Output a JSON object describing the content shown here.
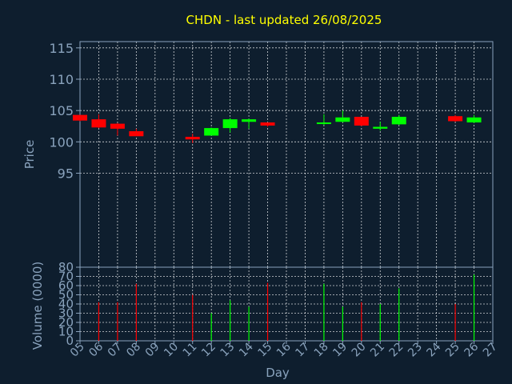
{
  "chart_data": {
    "type": "candlestick",
    "title": "CHDN - last updated 26/08/2025",
    "xlabel": "Day",
    "x_ticks": [
      "05",
      "06",
      "07",
      "08",
      "09",
      "10",
      "11",
      "12",
      "13",
      "14",
      "15",
      "16",
      "17",
      "18",
      "19",
      "20",
      "21",
      "22",
      "23",
      "24",
      "25",
      "26",
      "27"
    ],
    "xlim": [
      5,
      27
    ],
    "price_panel": {
      "ylabel": "Price",
      "ylim": [
        80,
        116
      ],
      "y_ticks": [
        95,
        100,
        105,
        110,
        115
      ],
      "candles": [
        {
          "day": 5,
          "open": 104.3,
          "high": 104.3,
          "low": 103.3,
          "close": 103.4
        },
        {
          "day": 6,
          "open": 103.6,
          "high": 104.4,
          "low": 102.2,
          "close": 102.3
        },
        {
          "day": 7,
          "open": 102.9,
          "high": 103.0,
          "low": 101.0,
          "close": 102.1
        },
        {
          "day": 8,
          "open": 101.7,
          "high": 102.1,
          "low": 100.9,
          "close": 100.9
        },
        {
          "day": 11,
          "open": 100.8,
          "high": 101.3,
          "low": 99.8,
          "close": 100.4
        },
        {
          "day": 12,
          "open": 101.0,
          "high": 102.3,
          "low": 101.0,
          "close": 102.2
        },
        {
          "day": 13,
          "open": 102.2,
          "high": 103.8,
          "low": 101.5,
          "close": 103.6
        },
        {
          "day": 14,
          "open": 103.2,
          "high": 103.7,
          "low": 102.1,
          "close": 103.6
        },
        {
          "day": 15,
          "open": 103.1,
          "high": 103.1,
          "low": 102.4,
          "close": 102.6
        },
        {
          "day": 18,
          "open": 103.0,
          "high": 104.4,
          "low": 102.7,
          "close": 103.1
        },
        {
          "day": 19,
          "open": 103.2,
          "high": 105.0,
          "low": 103.1,
          "close": 103.9
        },
        {
          "day": 20,
          "open": 104.0,
          "high": 104.0,
          "low": 102.5,
          "close": 102.6
        },
        {
          "day": 21,
          "open": 102.1,
          "high": 103.2,
          "low": 101.8,
          "close": 102.4
        },
        {
          "day": 22,
          "open": 102.8,
          "high": 104.3,
          "low": 102.7,
          "close": 104.0
        },
        {
          "day": 25,
          "open": 104.1,
          "high": 104.3,
          "low": 103.2,
          "close": 103.3
        },
        {
          "day": 26,
          "open": 103.1,
          "high": 104.3,
          "low": 103.0,
          "close": 103.9
        }
      ]
    },
    "volume_panel": {
      "ylabel": "Volume (0000)",
      "ylim": [
        0,
        80
      ],
      "y_ticks": [
        0,
        10,
        20,
        30,
        40,
        50,
        60,
        70,
        80
      ],
      "bars": [
        {
          "day": 6,
          "value": 42,
          "direction": "down"
        },
        {
          "day": 7,
          "value": 42,
          "direction": "down"
        },
        {
          "day": 8,
          "value": 62,
          "direction": "down"
        },
        {
          "day": 11,
          "value": 50,
          "direction": "down"
        },
        {
          "day": 12,
          "value": 30,
          "direction": "up"
        },
        {
          "day": 13,
          "value": 44,
          "direction": "up"
        },
        {
          "day": 14,
          "value": 37,
          "direction": "up"
        },
        {
          "day": 15,
          "value": 63,
          "direction": "down"
        },
        {
          "day": 18,
          "value": 62,
          "direction": "up"
        },
        {
          "day": 19,
          "value": 37,
          "direction": "up"
        },
        {
          "day": 20,
          "value": 42,
          "direction": "down"
        },
        {
          "day": 21,
          "value": 40,
          "direction": "up"
        },
        {
          "day": 22,
          "value": 57,
          "direction": "up"
        },
        {
          "day": 25,
          "value": 40,
          "direction": "down"
        },
        {
          "day": 26,
          "value": 72,
          "direction": "up"
        }
      ]
    },
    "grid": true,
    "colors": {
      "background": "#0e1e2e",
      "axis": "#8aa3bd",
      "grid": "#ffffff",
      "up": "#00ff00",
      "down": "#ff0000",
      "title": "#ffff00"
    }
  }
}
